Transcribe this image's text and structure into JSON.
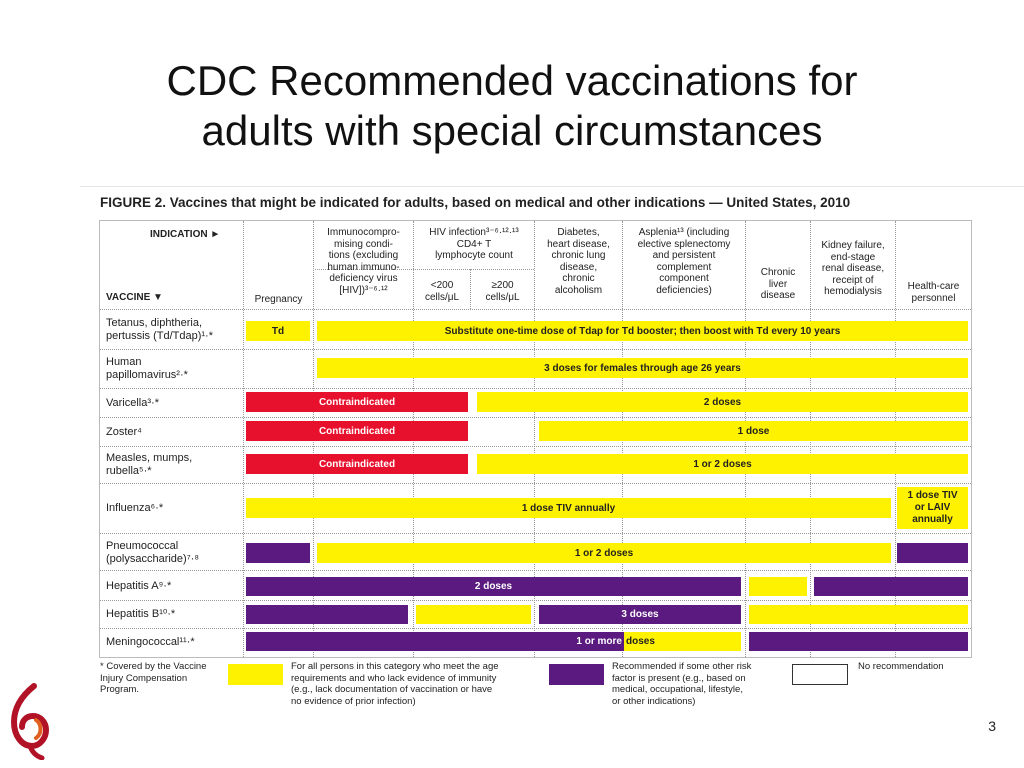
{
  "slide": {
    "title_line1": "CDC Recommended vaccinations for",
    "title_line2": "adults with special circumstances",
    "page_number": "3"
  },
  "figure": {
    "title": "FIGURE 2. Vaccines that might be indicated for adults, based on medical and other indications — United States, 2010",
    "indication_label": "INDICATION ►",
    "vaccine_label": "VACCINE ▼",
    "columns": {
      "pregnancy": "Pregnancy",
      "immuno": [
        "Immunocompro-",
        "mising condi-",
        "tions (excluding",
        "human immuno-",
        "deficiency virus",
        "[HIV])³⁻⁶·¹²"
      ],
      "hiv": [
        "HIV infection³⁻⁶·¹²·¹³",
        "CD4+ T",
        "lymphocyte count"
      ],
      "hiv_low": [
        "<200",
        "cells/μL"
      ],
      "hiv_high": [
        "≥200",
        "cells/μL"
      ],
      "diabetes": [
        "Diabetes,",
        "heart disease,",
        "chronic lung",
        "disease,",
        "chronic",
        "alcoholism"
      ],
      "asplenia": [
        "Asplenia¹³ (including",
        "elective splenectomy",
        "and persistent",
        "complement",
        "component",
        "deficiencies)"
      ],
      "liver": [
        "Chronic",
        "liver",
        "disease"
      ],
      "kidney": [
        "Kidney failure,",
        "end-stage",
        "renal disease,",
        "receipt of",
        "hemodialysis"
      ],
      "health": [
        "Health-care",
        "personnel"
      ]
    },
    "rows": {
      "td": [
        "Tetanus, diphtheria,",
        "pertussis (Td/Tdap)¹·*"
      ],
      "hpv": [
        "Human",
        "papillomavirus²·*"
      ],
      "varicella": "Varicella³·*",
      "zoster": "Zoster⁴",
      "mmr": [
        "Measles, mumps,",
        "rubella⁵·*"
      ],
      "influenza": "Influenza⁶·*",
      "pneumo": [
        "Pneumococcal",
        "(polysaccharide)⁷·⁸"
      ],
      "hepa": "Hepatitis A⁹·*",
      "hepb": "Hepatitis B¹⁰·*",
      "mening": "Meningococcal¹¹·*"
    },
    "bars": {
      "td": "Td",
      "tdap": "Substitute one-time dose of Tdap for Td booster; then boost with Td every 10 years",
      "hpv": "3 doses for females through age 26 years",
      "contra": "Contraindicated",
      "varicella": "2 doses",
      "zoster": "1 dose",
      "mmr": "1 or 2 doses",
      "influenza": "1 dose TIV annually",
      "influenza_hcp": [
        "1 dose TIV",
        "or LAIV",
        "annually"
      ],
      "pneumo": "1 or 2 doses",
      "hepa": "2 doses",
      "hepb": "3 doses",
      "mening_a": "1 or more",
      "mening_b": "doses"
    },
    "legend": {
      "footnote": [
        "* Covered by the Vaccine",
        "Injury Compensation",
        "Program."
      ],
      "yellow": [
        "For all persons in this category who meet the age",
        "requirements and who lack evidence of immunity",
        "(e.g., lack documentation of vaccination or have",
        "no evidence of prior infection)"
      ],
      "purple": [
        "Recommended if some other risk",
        "factor is present (e.g., based on",
        "medical, occupational, lifestyle,",
        "or other indications)"
      ],
      "none": "No recommendation"
    },
    "colors": {
      "yellow": "#fff200",
      "red": "#e8112d",
      "purple": "#5a1a7f"
    }
  }
}
